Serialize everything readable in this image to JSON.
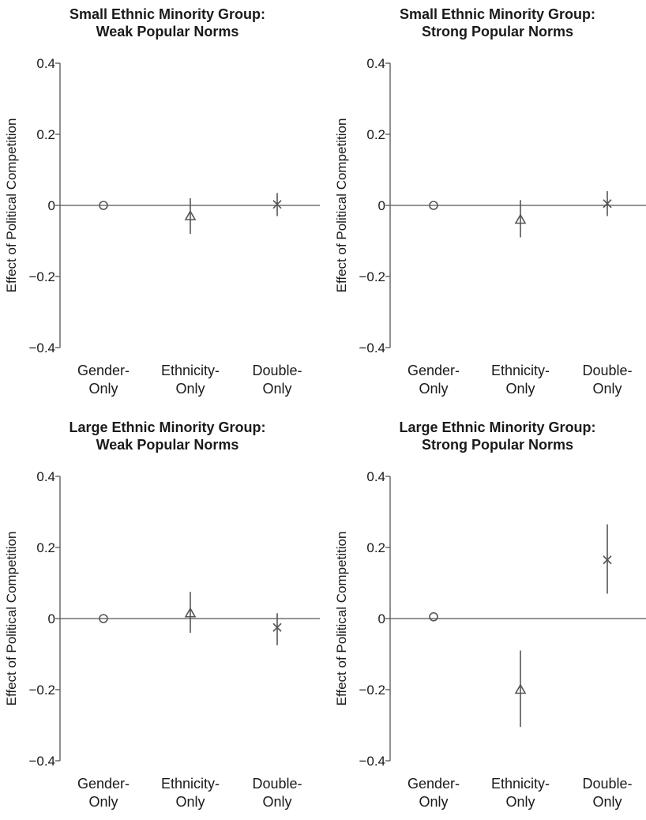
{
  "chart_data": [
    {
      "type": "scatter",
      "title": "Small Ethnic Minority Group:",
      "subtitle": "Weak Popular Norms",
      "ylabel": "Effect of Political Competition",
      "ylim": [
        -0.4,
        0.4
      ],
      "yticks": [
        "0.4",
        "0.2",
        "0",
        "−0.2",
        "−0.4"
      ],
      "categories": [
        [
          "Gender-",
          "Only"
        ],
        [
          "Ethnicity-",
          "Only"
        ],
        [
          "Double-",
          "Only"
        ]
      ],
      "points": [
        {
          "marker": "circle",
          "y": 0.0,
          "lo": 0.0,
          "hi": 0.0
        },
        {
          "marker": "triangle",
          "y": -0.03,
          "lo": -0.08,
          "hi": 0.02
        },
        {
          "marker": "x",
          "y": 0.003,
          "lo": -0.03,
          "hi": 0.035
        }
      ]
    },
    {
      "type": "scatter",
      "title": "Small Ethnic Minority Group:",
      "subtitle": "Strong Popular Norms",
      "ylabel": "Effect of Political Competition",
      "ylim": [
        -0.4,
        0.4
      ],
      "yticks": [
        "0.4",
        "0.2",
        "0",
        "−0.2",
        "−0.4"
      ],
      "categories": [
        [
          "Gender-",
          "Only"
        ],
        [
          "Ethnicity-",
          "Only"
        ],
        [
          "Double-",
          "Only"
        ]
      ],
      "points": [
        {
          "marker": "circle",
          "y": 0.0,
          "lo": 0.0,
          "hi": 0.0
        },
        {
          "marker": "triangle",
          "y": -0.04,
          "lo": -0.09,
          "hi": 0.015
        },
        {
          "marker": "x",
          "y": 0.005,
          "lo": -0.03,
          "hi": 0.04
        }
      ]
    },
    {
      "type": "scatter",
      "title": "Large Ethnic Minority Group:",
      "subtitle": "Weak Popular Norms",
      "ylabel": "Effect of Political Competition",
      "ylim": [
        -0.4,
        0.4
      ],
      "yticks": [
        "0.4",
        "0.2",
        "0",
        "−0.2",
        "−0.4"
      ],
      "categories": [
        [
          "Gender-",
          "Only"
        ],
        [
          "Ethnicity-",
          "Only"
        ],
        [
          "Double-",
          "Only"
        ]
      ],
      "points": [
        {
          "marker": "circle",
          "y": 0.0,
          "lo": 0.0,
          "hi": 0.0
        },
        {
          "marker": "triangle",
          "y": 0.015,
          "lo": -0.04,
          "hi": 0.075
        },
        {
          "marker": "x",
          "y": -0.025,
          "lo": -0.075,
          "hi": 0.015
        }
      ]
    },
    {
      "type": "scatter",
      "title": "Large Ethnic Minority Group:",
      "subtitle": "Strong Popular Norms",
      "ylabel": "Effect of Political Competition",
      "ylim": [
        -0.4,
        0.4
      ],
      "yticks": [
        "0.4",
        "0.2",
        "0",
        "−0.2",
        "−0.4"
      ],
      "categories": [
        [
          "Gender-",
          "Only"
        ],
        [
          "Ethnicity-",
          "Only"
        ],
        [
          "Double-",
          "Only"
        ]
      ],
      "points": [
        {
          "marker": "circle",
          "y": 0.005,
          "lo": 0.005,
          "hi": 0.005
        },
        {
          "marker": "triangle",
          "y": -0.2,
          "lo": -0.305,
          "hi": -0.09
        },
        {
          "marker": "x",
          "y": 0.165,
          "lo": 0.07,
          "hi": 0.265
        }
      ]
    }
  ]
}
